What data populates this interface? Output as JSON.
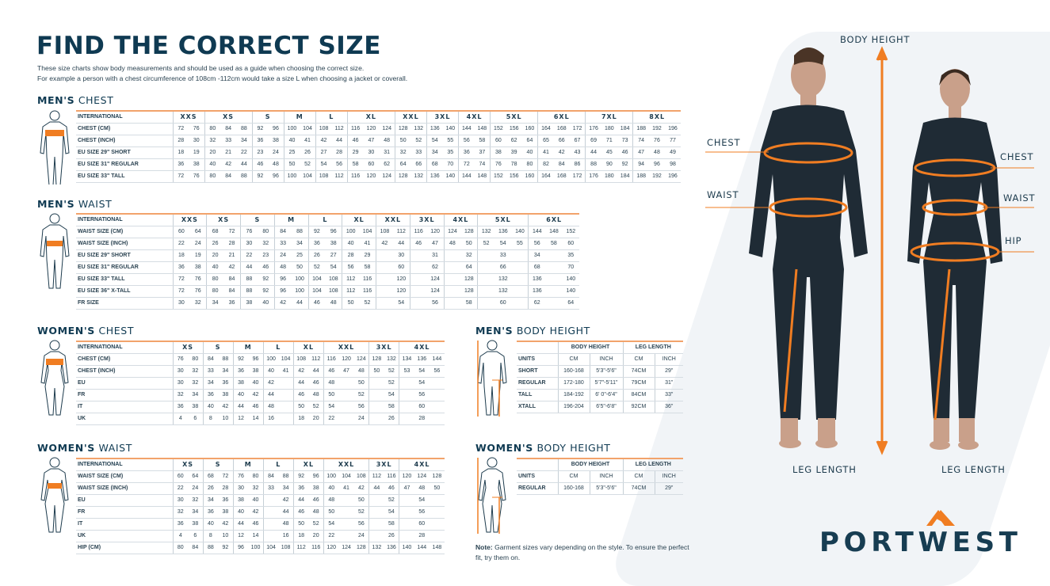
{
  "header": {
    "title": "FIND THE CORRECT SIZE",
    "intro_line1": "These size charts show body measurements and should be used as a guide when choosing the correct size.",
    "intro_line2": "For example a person with a chest circumference of 108cm -112cm would take a size L when choosing a jacket or coverall."
  },
  "colors": {
    "accent": "#f07d22",
    "navy": "#0f3a52"
  },
  "mens_chest": {
    "title_bold": "MEN'S",
    "title_rest": "CHEST",
    "header_label": "INTERNATIONAL",
    "groups": [
      [
        "XXS",
        2
      ],
      [
        "XS",
        3
      ],
      [
        "S",
        2
      ],
      [
        "M",
        2
      ],
      [
        "L",
        2
      ],
      [
        "XL",
        3
      ],
      [
        "XXL",
        2
      ],
      [
        "3XL",
        2
      ],
      [
        "4XL",
        2
      ],
      [
        "5XL",
        3
      ],
      [
        "6XL",
        3
      ],
      [
        "7XL",
        3
      ],
      [
        "8XL",
        3
      ]
    ],
    "rows": [
      {
        "label": "CHEST (CM)",
        "values": [
          "72",
          "76",
          "80",
          "84",
          "88",
          "92",
          "96",
          "100",
          "104",
          "108",
          "112",
          "116",
          "120",
          "124",
          "128",
          "132",
          "136",
          "140",
          "144",
          "148",
          "152",
          "156",
          "160",
          "164",
          "168",
          "172",
          "176",
          "180",
          "184",
          "188",
          "192",
          "196"
        ]
      },
      {
        "label": "CHEST (INCH)",
        "values": [
          "28",
          "30",
          "32",
          "33",
          "34",
          "36",
          "38",
          "40",
          "41",
          "42",
          "44",
          "46",
          "47",
          "48",
          "50",
          "52",
          "54",
          "55",
          "56",
          "58",
          "60",
          "62",
          "64",
          "65",
          "66",
          "67",
          "69",
          "71",
          "73",
          "74",
          "76",
          "77"
        ]
      },
      {
        "label": "EU SIZE 29\" SHORT",
        "values": [
          "18",
          "19",
          "20",
          "21",
          "22",
          "23",
          "24",
          "25",
          "26",
          "27",
          "28",
          "29",
          "30",
          "31",
          "32",
          "33",
          "34",
          "35",
          "36",
          "37",
          "38",
          "39",
          "40",
          "41",
          "42",
          "43",
          "44",
          "45",
          "46",
          "47",
          "48",
          "49"
        ]
      },
      {
        "label": "EU SIZE 31\" REGULAR",
        "values": [
          "36",
          "38",
          "40",
          "42",
          "44",
          "46",
          "48",
          "50",
          "52",
          "54",
          "56",
          "58",
          "60",
          "62",
          "64",
          "66",
          "68",
          "70",
          "72",
          "74",
          "76",
          "78",
          "80",
          "82",
          "84",
          "86",
          "88",
          "90",
          "92",
          "94",
          "96",
          "98"
        ]
      },
      {
        "label": "EU SIZE 33\" TALL",
        "values": [
          "72",
          "76",
          "80",
          "84",
          "88",
          "92",
          "96",
          "100",
          "104",
          "108",
          "112",
          "116",
          "120",
          "124",
          "128",
          "132",
          "136",
          "140",
          "144",
          "148",
          "152",
          "156",
          "160",
          "164",
          "168",
          "172",
          "176",
          "180",
          "184",
          "188",
          "192",
          "196"
        ]
      }
    ]
  },
  "mens_waist": {
    "title_bold": "MEN'S",
    "title_rest": "WAIST",
    "header_label": "INTERNATIONAL",
    "groups": [
      [
        "XXS",
        2
      ],
      [
        "XS",
        2
      ],
      [
        "S",
        2
      ],
      [
        "M",
        2
      ],
      [
        "L",
        2
      ],
      [
        "XL",
        2
      ],
      [
        "XXL",
        2
      ],
      [
        "3XL",
        2
      ],
      [
        "4XL",
        2
      ],
      [
        "5XL",
        3
      ],
      [
        "6XL",
        3
      ]
    ],
    "rows": [
      {
        "label": "WAIST SIZE (CM)",
        "values": [
          "60",
          "64",
          "68",
          "72",
          "76",
          "80",
          "84",
          "88",
          "92",
          "96",
          "100",
          "104",
          "108",
          "112",
          "116",
          "120",
          "124",
          "128",
          "132",
          "136",
          "140",
          "144",
          "148",
          "152"
        ]
      },
      {
        "label": "WAIST SIZE (INCH)",
        "values": [
          "22",
          "24",
          "26",
          "28",
          "30",
          "32",
          "33",
          "34",
          "36",
          "38",
          "40",
          "41",
          "42",
          "44",
          "46",
          "47",
          "48",
          "50",
          "52",
          "54",
          "55",
          "56",
          "58",
          "60"
        ]
      },
      {
        "label": "EU SIZE 29\" SHORT",
        "values": [
          "18",
          "19",
          "20",
          "21",
          "22",
          "23",
          "24",
          "25",
          "26",
          "27",
          "28",
          "29",
          "",
          "30",
          "",
          "31",
          "",
          "32",
          "",
          "33",
          "",
          "34",
          "",
          "35"
        ]
      },
      {
        "label": "EU SIZE 31\" REGULAR",
        "values": [
          "36",
          "38",
          "40",
          "42",
          "44",
          "46",
          "48",
          "50",
          "52",
          "54",
          "56",
          "58",
          "",
          "60",
          "",
          "62",
          "",
          "64",
          "",
          "66",
          "",
          "68",
          "",
          "70"
        ]
      },
      {
        "label": "EU SIZE 33\" TALL",
        "values": [
          "72",
          "76",
          "80",
          "84",
          "88",
          "92",
          "96",
          "100",
          "104",
          "108",
          "112",
          "116",
          "",
          "120",
          "",
          "124",
          "",
          "128",
          "",
          "132",
          "",
          "136",
          "",
          "140"
        ]
      },
      {
        "label": "EU SIZE 36\" X-TALL",
        "values": [
          "72",
          "76",
          "80",
          "84",
          "88",
          "92",
          "96",
          "100",
          "104",
          "108",
          "112",
          "116",
          "",
          "120",
          "",
          "124",
          "",
          "128",
          "",
          "132",
          "",
          "136",
          "",
          "140"
        ]
      },
      {
        "label": "FR SIZE",
        "values": [
          "30",
          "32",
          "34",
          "36",
          "38",
          "40",
          "42",
          "44",
          "46",
          "48",
          "50",
          "52",
          "",
          "54",
          "",
          "56",
          "",
          "58",
          "",
          "60",
          "",
          "62",
          "",
          "64"
        ]
      }
    ]
  },
  "womens_chest": {
    "title_bold": "WOMEN'S",
    "title_rest": "CHEST",
    "header_label": "INTERNATIONAL",
    "groups": [
      [
        "XS",
        2
      ],
      [
        "S",
        2
      ],
      [
        "M",
        2
      ],
      [
        "L",
        2
      ],
      [
        "XL",
        2
      ],
      [
        "XXL",
        3
      ],
      [
        "3XL",
        2
      ],
      [
        "4XL",
        3
      ]
    ],
    "rows": [
      {
        "label": "CHEST (CM)",
        "values": [
          "76",
          "80",
          "84",
          "88",
          "92",
          "96",
          "100",
          "104",
          "108",
          "112",
          "116",
          "120",
          "124",
          "128",
          "132",
          "134",
          "136",
          "144"
        ]
      },
      {
        "label": "CHEST (INCH)",
        "values": [
          "30",
          "32",
          "33",
          "34",
          "36",
          "38",
          "40",
          "41",
          "42",
          "44",
          "46",
          "47",
          "48",
          "50",
          "52",
          "53",
          "54",
          "56"
        ]
      },
      {
        "label": "EU",
        "values": [
          "30",
          "32",
          "34",
          "36",
          "38",
          "40",
          "42",
          "",
          "44",
          "46",
          "48",
          "",
          "50",
          "",
          "52",
          "",
          "54",
          ""
        ]
      },
      {
        "label": "FR",
        "values": [
          "32",
          "34",
          "36",
          "38",
          "40",
          "42",
          "44",
          "",
          "46",
          "48",
          "50",
          "",
          "52",
          "",
          "54",
          "",
          "56",
          ""
        ]
      },
      {
        "label": "IT",
        "values": [
          "36",
          "38",
          "40",
          "42",
          "44",
          "46",
          "48",
          "",
          "50",
          "52",
          "54",
          "",
          "56",
          "",
          "58",
          "",
          "60",
          ""
        ]
      },
      {
        "label": "UK",
        "values": [
          "4",
          "6",
          "8",
          "10",
          "12",
          "14",
          "16",
          "",
          "18",
          "20",
          "22",
          "",
          "24",
          "",
          "26",
          "",
          "28",
          ""
        ]
      }
    ]
  },
  "womens_waist": {
    "title_bold": "WOMEN'S",
    "title_rest": "WAIST",
    "header_label": "INTERNATIONAL",
    "groups": [
      [
        "XS",
        2
      ],
      [
        "S",
        2
      ],
      [
        "M",
        2
      ],
      [
        "L",
        2
      ],
      [
        "XL",
        2
      ],
      [
        "XXL",
        3
      ],
      [
        "3XL",
        2
      ],
      [
        "4XL",
        3
      ]
    ],
    "rows": [
      {
        "label": "WAIST SIZE (CM)",
        "values": [
          "60",
          "64",
          "68",
          "72",
          "76",
          "80",
          "84",
          "88",
          "92",
          "96",
          "100",
          "104",
          "108",
          "112",
          "116",
          "120",
          "124",
          "128"
        ]
      },
      {
        "label": "WAIST SIZE (INCH)",
        "values": [
          "22",
          "24",
          "26",
          "28",
          "30",
          "32",
          "33",
          "34",
          "36",
          "38",
          "40",
          "41",
          "42",
          "44",
          "46",
          "47",
          "48",
          "50"
        ]
      },
      {
        "label": "EU",
        "values": [
          "30",
          "32",
          "34",
          "36",
          "38",
          "40",
          "",
          "42",
          "44",
          "46",
          "48",
          "",
          "50",
          "",
          "52",
          "",
          "54",
          ""
        ]
      },
      {
        "label": "FR",
        "values": [
          "32",
          "34",
          "36",
          "38",
          "40",
          "42",
          "",
          "44",
          "46",
          "48",
          "50",
          "",
          "52",
          "",
          "54",
          "",
          "56",
          ""
        ]
      },
      {
        "label": "IT",
        "values": [
          "36",
          "38",
          "40",
          "42",
          "44",
          "46",
          "",
          "48",
          "50",
          "52",
          "54",
          "",
          "56",
          "",
          "58",
          "",
          "60",
          ""
        ]
      },
      {
        "label": "UK",
        "values": [
          "4",
          "6",
          "8",
          "10",
          "12",
          "14",
          "",
          "16",
          "18",
          "20",
          "22",
          "",
          "24",
          "",
          "26",
          "",
          "28",
          ""
        ]
      },
      {
        "label": "HIP (CM)",
        "values": [
          "80",
          "84",
          "88",
          "92",
          "96",
          "100",
          "104",
          "108",
          "112",
          "116",
          "120",
          "124",
          "128",
          "132",
          "136",
          "140",
          "144",
          "148"
        ]
      }
    ]
  },
  "mens_height": {
    "title_bold": "MEN'S",
    "title_rest": "BODY HEIGHT",
    "col_body": "BODY HEIGHT",
    "col_leg": "LEG LENGTH",
    "units": [
      "UNITS",
      "CM",
      "INCH",
      "CM",
      "INCH"
    ],
    "rows": [
      [
        "SHORT",
        "160-168",
        "5'3\"-5'6\"",
        "74CM",
        "29\""
      ],
      [
        "REGULAR",
        "172-180",
        "5'7\"-5'11\"",
        "79CM",
        "31\""
      ],
      [
        "TALL",
        "184-192",
        "6' 0\"-6'4\"",
        "84CM",
        "33\""
      ],
      [
        "XTALL",
        "196-204",
        "6'5\"-6'8\"",
        "92CM",
        "36\""
      ]
    ]
  },
  "womens_height": {
    "title_bold": "WOMEN'S",
    "title_rest": "BODY HEIGHT",
    "col_body": "BODY HEIGHT",
    "col_leg": "LEG LENGTH",
    "units": [
      "UNITS",
      "CM",
      "INCH",
      "CM",
      "INCH"
    ],
    "rows": [
      [
        "REGULAR",
        "160-168",
        "5'3\"-5'6\"",
        "74CM",
        "29\""
      ]
    ]
  },
  "note": {
    "bold": "Note:",
    "text": " Garment sizes vary depending on the style. To ensure the perfect fit, try them on."
  },
  "diagram_labels": {
    "body_height": "BODY HEIGHT",
    "men_chest": "CHEST",
    "men_waist": "WAIST",
    "men_leg": "LEG LENGTH",
    "women_chest": "CHEST",
    "women_waist": "WAIST",
    "women_hip": "HIP",
    "women_leg": "LEG LENGTH"
  },
  "logo": {
    "text": "PORTWEST"
  }
}
